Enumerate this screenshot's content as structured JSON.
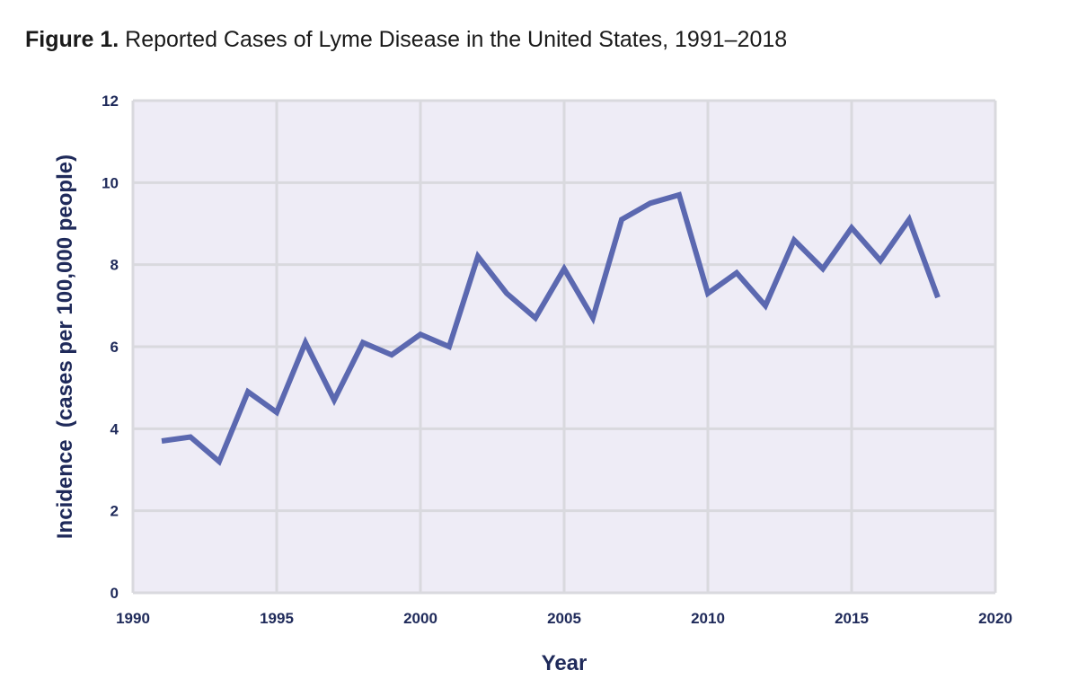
{
  "figure": {
    "label": "Figure 1.",
    "caption": "Reported Cases of Lyme Disease in the United States, 1991–2018"
  },
  "chart_data": {
    "type": "line",
    "title": "Figure 1. Reported Cases of Lyme Disease in the United States, 1991–2018",
    "xlabel": "Year",
    "ylabel": "Incidence  (cases per 100,000 people)",
    "xlim": [
      1990,
      2020
    ],
    "ylim": [
      0,
      12
    ],
    "xticks": [
      1990,
      1995,
      2000,
      2005,
      2010,
      2015,
      2020
    ],
    "yticks": [
      0,
      2,
      4,
      6,
      8,
      10,
      12
    ],
    "grid": true,
    "legend": "none",
    "colors": {
      "line": "#5b68b0",
      "plot_background": "#eeecf6",
      "grid": "#d9d9de",
      "text": "#1f2a5a"
    },
    "series": [
      {
        "name": "Incidence",
        "x": [
          1991,
          1992,
          1993,
          1994,
          1995,
          1996,
          1997,
          1998,
          1999,
          2000,
          2001,
          2002,
          2003,
          2004,
          2005,
          2006,
          2007,
          2008,
          2009,
          2010,
          2011,
          2012,
          2013,
          2014,
          2015,
          2016,
          2017,
          2018
        ],
        "values": [
          3.7,
          3.8,
          3.2,
          4.9,
          4.4,
          6.1,
          4.7,
          6.1,
          5.8,
          6.3,
          6.0,
          8.2,
          7.3,
          6.7,
          7.9,
          6.7,
          9.1,
          9.5,
          9.7,
          7.3,
          7.8,
          7.0,
          8.6,
          7.9,
          8.9,
          8.1,
          9.1,
          7.2
        ]
      }
    ]
  }
}
